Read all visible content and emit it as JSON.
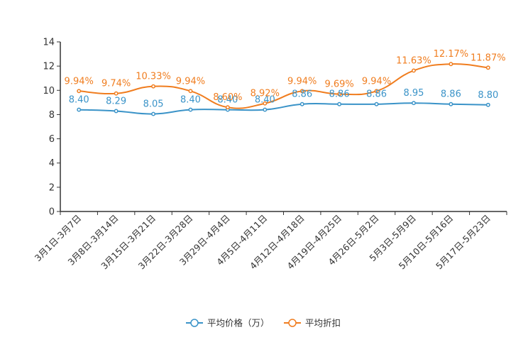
{
  "chart_data": {
    "type": "line",
    "title": "",
    "xlabel": "",
    "ylabel": "",
    "ylim": [
      0,
      14
    ],
    "yticks": [
      0,
      2,
      4,
      6,
      8,
      10,
      12,
      14
    ],
    "grid": false,
    "legend_position": "bottom",
    "categories": [
      "3月1日-3月7日",
      "3月8日-3月14日",
      "3月15日-3月21日",
      "3月22日-3月28日",
      "3月29日-4月4日",
      "4月5日-4月11日",
      "4月12日-4月18日",
      "4月19日-4月25日",
      "4月26日-5月2日",
      "5月3日-5月9日",
      "5月10日-5月16日",
      "5月17日-5月23日"
    ],
    "series": [
      {
        "name": "平均价格（万）",
        "color": "#3a93c8",
        "values": [
          8.4,
          8.29,
          8.05,
          8.4,
          8.4,
          8.4,
          8.86,
          8.86,
          8.86,
          8.95,
          8.86,
          8.8
        ],
        "labels": [
          "8.40",
          "8.29",
          "8.05",
          "8.40",
          "8.40",
          "8.40",
          "8.86",
          "8.86",
          "8.86",
          "8.95",
          "8.86",
          "8.80"
        ]
      },
      {
        "name": "平均折扣",
        "color": "#f07d1f",
        "values": [
          9.94,
          9.74,
          10.33,
          9.94,
          8.6,
          8.92,
          9.94,
          9.69,
          9.94,
          11.63,
          12.17,
          11.87
        ],
        "labels": [
          "9.94%",
          "9.74%",
          "10.33%",
          "9.94%",
          "8.60%",
          "8.92%",
          "9.94%",
          "9.69%",
          "9.94%",
          "11.63%",
          "12.17%",
          "11.87%"
        ]
      }
    ]
  }
}
